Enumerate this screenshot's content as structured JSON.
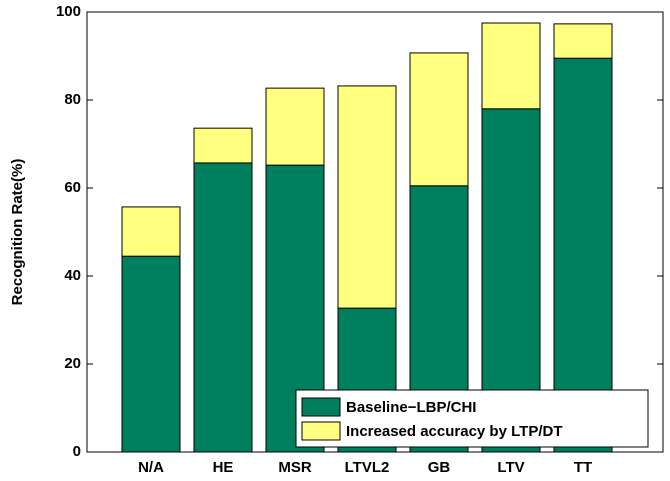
{
  "chart_data": {
    "type": "stacked_bar",
    "y_label": "Recognition Rate(%)",
    "categories": [
      "N/A",
      "HE",
      "MSR",
      "LTVL2",
      "GB",
      "LTV",
      "TT"
    ],
    "series": [
      {
        "name": "Baseline−LBP/CHI",
        "color": "#007f5f",
        "values": [
          44.5,
          65.7,
          65.2,
          32.7,
          60.5,
          78.0,
          89.5
        ]
      },
      {
        "name": "Increased accuracy by LTP/DT",
        "color": "#ffff7f",
        "values": [
          11.2,
          7.9,
          17.5,
          50.5,
          30.2,
          19.5,
          7.8
        ]
      }
    ],
    "ylim": [
      0,
      100
    ],
    "yticks": [
      0,
      20,
      40,
      60,
      80,
      100
    ],
    "legend": "lower right"
  }
}
